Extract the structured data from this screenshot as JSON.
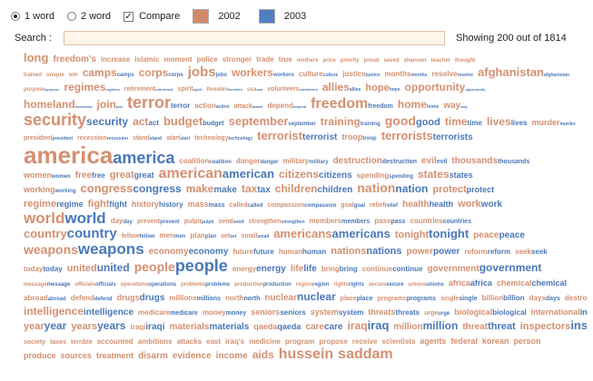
{
  "controls": {
    "option_1word": "1 word",
    "option_2word": "2 word",
    "compare_label": "Compare",
    "year_a": "2002",
    "year_b": "2003"
  },
  "colors": {
    "year_a": "#d49070",
    "year_b": "#4a78b8",
    "swatch_a": "#d28b6a",
    "swatch_b": "#4f7fc0"
  },
  "search": {
    "label": "Search :",
    "value": "",
    "placeholder": "",
    "showing": "Showing 200 out of 1814"
  },
  "cloud_rows": [
    [
      [
        "long",
        "",
        13,
        7
      ],
      [
        "freedom's",
        "",
        10,
        6
      ],
      [
        "increase",
        "",
        8,
        7
      ],
      [
        "islamic",
        "",
        8,
        7
      ],
      [
        "moment",
        "",
        8,
        7
      ],
      [
        "police",
        "",
        8,
        7
      ],
      [
        "stronger",
        "",
        8,
        7
      ],
      [
        "trade",
        "",
        8,
        7
      ],
      [
        "true",
        "",
        8,
        7
      ],
      [
        "mothers",
        "",
        6,
        6
      ],
      [
        "price",
        "",
        6,
        6
      ],
      [
        "priority",
        "",
        6,
        6
      ],
      [
        "proud",
        "",
        6,
        6
      ],
      [
        "saved",
        "",
        6,
        6
      ],
      [
        "shannon",
        "",
        6,
        6
      ],
      [
        "teacher",
        "",
        6,
        6
      ],
      [
        "thought",
        "",
        6,
        6
      ]
    ],
    [
      [
        "trained",
        "",
        6,
        6
      ],
      [
        "unique",
        "",
        6,
        6
      ],
      [
        "win",
        "",
        6,
        6
      ],
      [
        "camps",
        "camps",
        12,
        6
      ],
      [
        "corps",
        "corps",
        12,
        6
      ],
      [
        "jobs",
        "jobs",
        15,
        6
      ],
      [
        "workers",
        "workers",
        12,
        6
      ],
      [
        "culture",
        "culture",
        8,
        5
      ],
      [
        "justice",
        "justice",
        8,
        5
      ],
      [
        "months",
        "months",
        8,
        5
      ],
      [
        "resolve",
        "resolve",
        8,
        5
      ],
      [
        "afghanistan",
        "afghanistan",
        13,
        5
      ]
    ],
    [
      [
        "purpose",
        "purpose",
        6,
        4
      ],
      [
        "regimes",
        "regimes",
        12,
        4
      ],
      [
        "retirement",
        "retirement",
        7,
        4
      ],
      [
        "spirit",
        "spirit",
        7,
        4
      ],
      [
        "threaten",
        "threaten",
        6,
        4
      ],
      [
        "usa",
        "usa",
        6,
        4
      ],
      [
        "volunteers",
        "volunteers",
        7,
        4
      ],
      [
        "allies",
        "allies",
        12,
        5
      ],
      [
        "hope",
        "hope",
        11,
        5
      ],
      [
        "opportunity",
        "opportunity",
        12,
        4
      ]
    ],
    [
      [
        "homeland",
        "homeland",
        12,
        4
      ],
      [
        "join",
        "join",
        12,
        4
      ],
      [
        "terror",
        "terror",
        18,
        8
      ],
      [
        "action",
        "action",
        8,
        5
      ],
      [
        "attack",
        "attack",
        7,
        4
      ],
      [
        "depend",
        "depend",
        8,
        4
      ],
      [
        "freedom",
        "freedom",
        16,
        7
      ],
      [
        "home",
        "home",
        12,
        5
      ],
      [
        "way",
        "way",
        10,
        4
      ]
    ],
    [
      [
        "security",
        "security",
        18,
        12
      ],
      [
        "act",
        "act",
        12,
        8
      ],
      [
        "budget",
        "budget",
        13,
        7
      ],
      [
        "september",
        "september",
        13,
        6
      ],
      [
        "training",
        "training",
        12,
        6
      ],
      [
        "good",
        "good",
        14,
        11
      ],
      [
        "time",
        "time",
        12,
        8
      ],
      [
        "lives",
        "lives",
        12,
        8
      ],
      [
        "murder",
        "murder",
        9,
        5
      ]
    ],
    [
      [
        "president",
        "president",
        7,
        5
      ],
      [
        "recession",
        "recession",
        7,
        5
      ],
      [
        "stand",
        "stand",
        7,
        5
      ],
      [
        "start",
        "start",
        7,
        5
      ],
      [
        "technology",
        "technology",
        7,
        5
      ],
      [
        "terrorist",
        "terrorist",
        13,
        10
      ],
      [
        "troop",
        "troop",
        9,
        6
      ],
      [
        "terrorists",
        "terrorists",
        13,
        10
      ]
    ],
    [
      [
        "america",
        "america",
        26,
        18
      ],
      [
        "coalition",
        "coalition",
        8,
        6
      ],
      [
        "danger",
        "danger",
        8,
        6
      ],
      [
        "military",
        "military",
        8,
        6
      ],
      [
        "destruction",
        "destruction",
        10,
        7
      ],
      [
        "evil",
        "evil",
        10,
        7
      ],
      [
        "thousands",
        "thousands",
        10,
        7
      ]
    ],
    [
      [
        "women",
        "women",
        9,
        6
      ],
      [
        "free",
        "free",
        10,
        8
      ],
      [
        "great",
        "great",
        11,
        9
      ],
      [
        "american",
        "american",
        16,
        13
      ],
      [
        "citizens",
        "citizens",
        12,
        10
      ],
      [
        "spending",
        "spending",
        8,
        6
      ],
      [
        "states",
        "states",
        12,
        9
      ]
    ],
    [
      [
        "working",
        "working",
        9,
        6
      ],
      [
        "congress",
        "congress",
        13,
        12
      ],
      [
        "make",
        "make",
        12,
        10
      ],
      [
        "tax",
        "tax",
        12,
        10
      ],
      [
        "children",
        "children",
        12,
        10
      ],
      [
        "nation",
        "nation",
        14,
        12
      ],
      [
        "protect",
        "protect",
        11,
        9
      ]
    ],
    [
      [
        "regime",
        "regime",
        11,
        9
      ],
      [
        "fight",
        "fight",
        11,
        9
      ],
      [
        "history",
        "history",
        9,
        8
      ],
      [
        "mass",
        "mass",
        9,
        7
      ],
      [
        "called",
        "called",
        7,
        6
      ],
      [
        "compassion",
        "compassion",
        7,
        6
      ],
      [
        "goal",
        "goal",
        7,
        6
      ],
      [
        "relief",
        "relief",
        7,
        6
      ],
      [
        "health",
        "health",
        10,
        9
      ],
      [
        "work",
        "work",
        11,
        10
      ]
    ],
    [
      [
        "world",
        "world",
        17,
        17
      ],
      [
        "day",
        "day",
        8,
        6
      ],
      [
        "prevent",
        "prevent",
        7,
        6
      ],
      [
        "pulpit",
        "pulpit",
        7,
        5
      ],
      [
        "send",
        "send",
        7,
        5
      ],
      [
        "strengthen",
        "strengthen",
        7,
        5
      ],
      [
        "members",
        "members",
        8,
        7
      ],
      [
        "pass",
        "pass",
        8,
        7
      ],
      [
        "countries",
        "countries",
        8,
        7
      ]
    ],
    [
      [
        "country",
        "country",
        13,
        15
      ],
      [
        "fellow",
        "fellow",
        7,
        6
      ],
      [
        "men",
        "men",
        8,
        6
      ],
      [
        "plan",
        "plan",
        8,
        6
      ],
      [
        "set",
        "set",
        7,
        5
      ],
      [
        "small",
        "small",
        7,
        5
      ],
      [
        "americans",
        "americans",
        13,
        13
      ],
      [
        "tonight",
        "tonight",
        11,
        13
      ],
      [
        "peace",
        "peace",
        10,
        10
      ]
    ],
    [
      [
        "weapons",
        "weapons",
        14,
        17
      ],
      [
        "economy",
        "economy",
        10,
        10
      ],
      [
        "future",
        "future",
        8,
        8
      ],
      [
        "human",
        "human",
        8,
        8
      ],
      [
        "nations",
        "nations",
        11,
        11
      ],
      [
        "power",
        "power",
        10,
        10
      ],
      [
        "reform",
        "reform",
        8,
        8
      ],
      [
        "seek",
        "seek",
        8,
        8
      ]
    ],
    [
      [
        "today",
        "today",
        8,
        8
      ],
      [
        "united",
        "united",
        11,
        12
      ],
      [
        "people",
        "people",
        14,
        18
      ],
      [
        "energy",
        "energy",
        8,
        10
      ],
      [
        "life",
        "life",
        10,
        10
      ],
      [
        "bring",
        "bring",
        8,
        8
      ],
      [
        "continue",
        "continue",
        8,
        8
      ],
      [
        "government",
        "government",
        10,
        12
      ]
    ],
    [
      [
        "message",
        "message",
        6,
        6
      ],
      [
        "officials",
        "officials",
        6,
        6
      ],
      [
        "operations",
        "operations",
        6,
        6
      ],
      [
        "problems",
        "problems",
        6,
        6
      ],
      [
        "production",
        "production",
        6,
        6
      ],
      [
        "region",
        "region",
        6,
        6
      ],
      [
        "rights",
        "rights",
        6,
        6
      ],
      [
        "secure",
        "secure",
        6,
        6
      ],
      [
        "unions",
        "unions",
        6,
        6
      ],
      [
        "africa",
        "africa",
        9,
        9
      ],
      [
        "chemical",
        "chemical",
        9,
        9
      ]
    ],
    [
      [
        "abroad",
        "abroad",
        8,
        6
      ],
      [
        "defend",
        "defend",
        8,
        6
      ],
      [
        "drugs",
        "drugs",
        9,
        10
      ],
      [
        "millions",
        "millions",
        8,
        7
      ],
      [
        "north",
        "north",
        8,
        7
      ],
      [
        "nuclear",
        "nuclear",
        10,
        12
      ],
      [
        "place",
        "place",
        7,
        7
      ],
      [
        "programs",
        "programs",
        7,
        7
      ],
      [
        "single",
        "single",
        7,
        7
      ],
      [
        "billion",
        "billion",
        8,
        8
      ],
      [
        "days",
        "days",
        8,
        7
      ],
      [
        "destroyed",
        "destroyed",
        8,
        8
      ]
    ],
    [
      [
        "intelligence",
        "intelligence",
        12,
        10
      ],
      [
        "medicare",
        "medicare",
        8,
        7
      ],
      [
        "money",
        "money",
        8,
        7
      ],
      [
        "seniors",
        "seniors",
        9,
        8
      ],
      [
        "system",
        "system",
        9,
        8
      ],
      [
        "threats",
        "threats",
        9,
        8
      ],
      [
        "urge",
        "urge",
        7,
        6
      ],
      [
        "biological",
        "biological",
        9,
        8
      ],
      [
        "international",
        "international",
        9,
        9
      ]
    ],
    [
      [
        "year",
        "year",
        11,
        12
      ],
      [
        "years",
        "years",
        11,
        12
      ],
      [
        "iraqi",
        "iraqi",
        8,
        10
      ],
      [
        "materials",
        "materials",
        10,
        10
      ],
      [
        "qaeda",
        "qaeda",
        9,
        9
      ],
      [
        "care",
        "care",
        10,
        10
      ],
      [
        "iraq",
        "iraq",
        12,
        13
      ],
      [
        "million",
        "million",
        10,
        12
      ],
      [
        "threat",
        "threat",
        10,
        11
      ],
      [
        "inspectors",
        "inspectors",
        11,
        13
      ],
      [
        "middle",
        "",
        7,
        7
      ],
      [
        "show",
        "",
        7,
        7
      ]
    ],
    [
      [
        "society",
        "",
        7,
        7
      ],
      [
        "taxes",
        "",
        7,
        7
      ],
      [
        "terrible",
        "",
        7,
        7
      ],
      [
        "accounted",
        "",
        8,
        8
      ],
      [
        "ambitions",
        "",
        8,
        8
      ],
      [
        "attacks",
        "",
        8,
        8
      ],
      [
        "east",
        "",
        8,
        8
      ],
      [
        "iraq's",
        "",
        8,
        8
      ],
      [
        "medicine",
        "",
        8,
        8
      ],
      [
        "program",
        "",
        8,
        8
      ],
      [
        "propose",
        "",
        8,
        8
      ],
      [
        "receive",
        "",
        8,
        8
      ],
      [
        "scientists",
        "",
        8,
        8
      ],
      [
        "agents",
        "",
        9,
        9
      ],
      [
        "federal",
        "",
        9,
        9
      ],
      [
        "korean",
        "",
        9,
        9
      ],
      [
        "person",
        "",
        9,
        9
      ]
    ],
    [
      [
        "produce",
        "",
        9,
        9
      ],
      [
        "sources",
        "",
        9,
        9
      ],
      [
        "treatment",
        "",
        9,
        9
      ],
      [
        "disarm",
        "",
        10,
        10
      ],
      [
        "evidence",
        "",
        10,
        10
      ],
      [
        "income",
        "",
        10,
        10
      ],
      [
        "aids",
        "",
        12,
        12
      ],
      [
        "hussein",
        "",
        16,
        16
      ],
      [
        "saddam",
        "",
        16,
        16
      ]
    ]
  ]
}
